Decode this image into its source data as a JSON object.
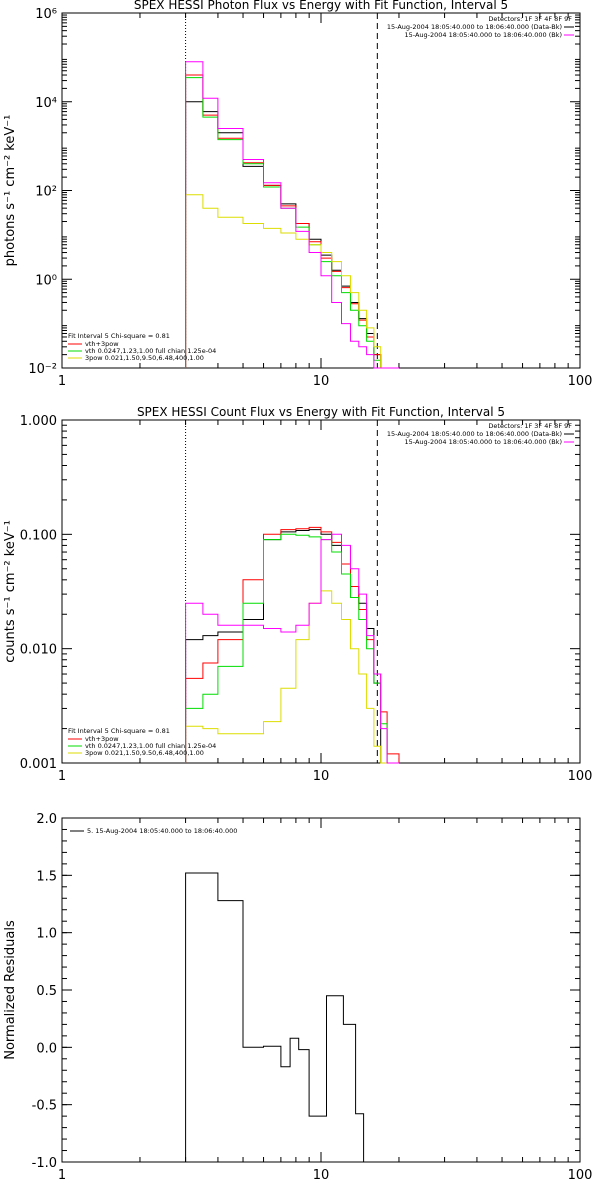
{
  "chart_data": [
    {
      "type": "line",
      "title": "SPEX HESSI Photon Flux vs Energy with Fit Function, Interval 5",
      "ylabel": "photons s⁻¹ cm⁻² keV⁻¹",
      "xlabel": "",
      "xscale": "log",
      "yscale": "log",
      "xlim": [
        1,
        100
      ],
      "ylim": [
        0.01,
        1000000
      ],
      "xticks": [
        1,
        10,
        100
      ],
      "xtick_labels": [
        "1",
        "10",
        "100"
      ],
      "yticks": [
        0.01,
        1,
        100,
        10000,
        1000000
      ],
      "ytick_labels": [
        "10⁻²",
        "10⁰",
        "10²",
        "10⁴",
        "10⁶"
      ],
      "vlines": [
        {
          "x": 3.0,
          "style": "dotted"
        },
        {
          "x": 16.5,
          "style": "dashed"
        }
      ],
      "legend_top": [
        "Detectors: 1F 3F 4F 8F 9F",
        "15-Aug-2004 18:05:40.000 to 18:06:40.000 (Data-Bk)",
        "15-Aug-2004 18:05:40.000 to 18:06:40.000 (Bk)"
      ],
      "legend_bottom_title": "Fit Interval 5   Chi-square = 0.81",
      "legend_bottom": [
        "vth+3pow",
        "vth 0.0247,1.23,1.00  full chian 1.25e-04",
        "3pow 0.021,1.50,9.50,6.48,400,1.00"
      ],
      "edges": [
        3,
        3.5,
        4,
        5,
        6,
        7,
        8,
        9,
        10,
        11,
        12,
        13,
        14,
        15,
        16,
        17,
        18,
        20
      ],
      "series": [
        {
          "name": "15-Aug-2004 18:05:40.000 to 18:06:40.000 (Data-Bk)",
          "color": "#000000",
          "values": [
            10000,
            6000,
            2000,
            350,
            130,
            50,
            18,
            8,
            3.5,
            1.6,
            0.7,
            0.3,
            0.13,
            0.06,
            0.02,
            0.01,
            0.01
          ]
        },
        {
          "name": "vth+3pow",
          "color": "#ff0000",
          "values": [
            40000,
            5000,
            1500,
            420,
            130,
            45,
            18,
            7,
            3,
            1.5,
            0.65,
            0.28,
            0.12,
            0.05,
            0.02,
            0.01,
            0.01
          ]
        },
        {
          "name": "vth 0.0247,1.23,1.00  full chian 1.25e-04",
          "color": "#00dd00",
          "values": [
            35000,
            4500,
            1400,
            400,
            120,
            40,
            15,
            6,
            2.5,
            1.2,
            0.5,
            0.2,
            0.09,
            0.04,
            0.015,
            0.01,
            0.01
          ]
        },
        {
          "name": "3pow 0.021,1.50,9.50,6.48,400,1.00",
          "color": "#dddd00",
          "values": [
            80,
            40,
            25,
            18,
            14,
            11,
            8,
            6,
            4,
            2.5,
            1.2,
            0.5,
            0.2,
            0.08,
            0.03,
            0.01,
            0.01
          ]
        },
        {
          "name": "15-Aug-2004 18:05:40.000 to 18:06:40.000 (Bk)",
          "color": "#ff00ff",
          "values": [
            80000,
            12000,
            2500,
            500,
            150,
            40,
            12,
            4,
            1.2,
            0.3,
            0.1,
            0.04,
            0.03,
            0.02,
            0.01,
            0.01,
            0.01
          ]
        }
      ]
    },
    {
      "type": "line",
      "title": "SPEX HESSI Count Flux vs Energy with Fit Function, Interval 5",
      "ylabel": "counts s⁻¹ cm⁻² keV⁻¹",
      "xlabel": "",
      "xscale": "log",
      "yscale": "log",
      "xlim": [
        1,
        100
      ],
      "ylim": [
        0.001,
        1.0
      ],
      "xticks": [
        1,
        10,
        100
      ],
      "xtick_labels": [
        "1",
        "10",
        "100"
      ],
      "yticks": [
        0.001,
        0.01,
        0.1,
        1.0
      ],
      "ytick_labels": [
        "0.001",
        "0.010",
        "0.100",
        "1.000"
      ],
      "vlines": [
        {
          "x": 3.0,
          "style": "dotted"
        },
        {
          "x": 16.5,
          "style": "dashed"
        }
      ],
      "legend_top": [
        "Detectors: 1F 3F 4F 8F 9F",
        "15-Aug-2004 18:05:40.000 to 18:06:40.000 (Data-Bk)",
        "15-Aug-2004 18:05:40.000 to 18:06:40.000 (Bk)"
      ],
      "legend_bottom_title": "Fit Interval 5   Chi-square = 0.81",
      "legend_bottom": [
        "vth+3pow",
        "vth 0.0247,1.23,1.00  full chian 1.25e-04",
        "3pow 0.021,1.50,9.50,6.48,400,1.00"
      ],
      "edges": [
        3,
        3.5,
        4,
        5,
        6,
        7,
        8,
        9,
        10,
        11,
        12,
        13,
        14,
        15,
        16,
        17,
        18,
        20
      ],
      "series": [
        {
          "name": "15-Aug-2004 18:05:40.000 to 18:06:40.000 (Data-Bk)",
          "color": "#000000",
          "values": [
            0.012,
            0.013,
            0.014,
            0.018,
            0.09,
            0.105,
            0.108,
            0.11,
            0.1,
            0.08,
            0.055,
            0.035,
            0.025,
            0.015,
            0.005,
            0.001,
            0.001
          ]
        },
        {
          "name": "vth+3pow",
          "color": "#ff0000",
          "values": [
            0.0055,
            0.0075,
            0.012,
            0.04,
            0.1,
            0.11,
            0.112,
            0.115,
            0.105,
            0.085,
            0.055,
            0.035,
            0.022,
            0.012,
            0.006,
            0.0028,
            0.0012
          ]
        },
        {
          "name": "vth 0.0247,1.23,1.00  full chian 1.25e-04",
          "color": "#00dd00",
          "values": [
            0.003,
            0.004,
            0.007,
            0.025,
            0.09,
            0.1,
            0.098,
            0.095,
            0.09,
            0.07,
            0.045,
            0.028,
            0.018,
            0.01,
            0.005,
            0.0022,
            0.001
          ]
        },
        {
          "name": "3pow 0.021,1.50,9.50,6.48,400,1.00",
          "color": "#dddd00",
          "values": [
            0.0021,
            0.002,
            0.0018,
            0.0018,
            0.0023,
            0.0045,
            0.012,
            0.025,
            0.032,
            0.025,
            0.018,
            0.01,
            0.006,
            0.003,
            0.0014,
            0.001,
            0.001
          ]
        },
        {
          "name": "15-Aug-2004 18:05:40.000 to 18:06:40.000 (Bk)",
          "color": "#ff00ff",
          "values": [
            0.025,
            0.02,
            0.016,
            0.016,
            0.015,
            0.014,
            0.016,
            0.025,
            0.09,
            0.1,
            0.08,
            0.05,
            0.03,
            0.013,
            0.006,
            0.002,
            0.001
          ]
        }
      ]
    },
    {
      "type": "line",
      "title": "",
      "ylabel": "Normalized Residuals",
      "xlabel": "",
      "xscale": "log",
      "yscale": "linear",
      "xlim": [
        1,
        100
      ],
      "ylim": [
        -1.0,
        2.0
      ],
      "xticks": [
        1,
        10,
        100
      ],
      "xtick_labels": [
        "1",
        "10",
        "100"
      ],
      "yticks": [
        -1.0,
        -0.5,
        0.0,
        0.5,
        1.0,
        1.5,
        2.0
      ],
      "ytick_labels": [
        "-1.0",
        "-0.5",
        "0.0",
        "0.5",
        "1.0",
        "1.5",
        "2.0"
      ],
      "legend_top": [
        "5. 15-Aug-2004 18:05:40.000 to 18:06:40.000"
      ],
      "edges": [
        3,
        4,
        5,
        6,
        7,
        7.6,
        8.2,
        9,
        10.5,
        12.2,
        13.6,
        14.6,
        15.6,
        16.5
      ],
      "series": [
        {
          "name": "5. 15-Aug-2004 18:05:40.000 to 18:06:40.000",
          "color": "#000000",
          "values": [
            1.52,
            1.28,
            0.0,
            0.01,
            -0.17,
            0.08,
            -0.02,
            -0.6,
            0.45,
            0.2,
            -0.58,
            -1.05,
            -1.05
          ]
        }
      ]
    }
  ]
}
